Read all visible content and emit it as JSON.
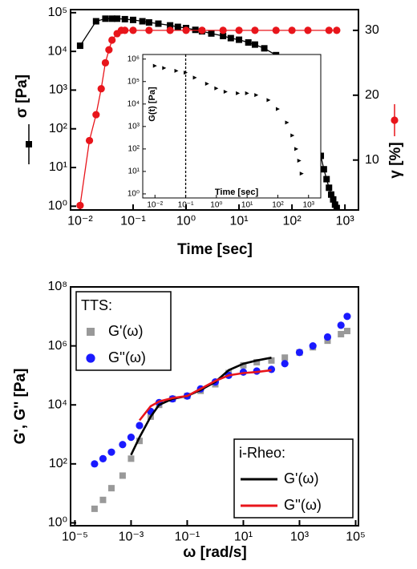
{
  "chart_data": [
    {
      "type": "line",
      "xlabel": "Time [sec]",
      "ylabel": "σ [Pa]",
      "y2label": "γ [%]",
      "xscale": "log",
      "yscale": "log",
      "xlim": [
        0.0066,
        1800
      ],
      "ylim": [
        0.8,
        120000
      ],
      "y2lim": [
        2.3,
        33.2
      ],
      "xticks": [
        {
          "value": 0.01,
          "label": "10⁻²"
        },
        {
          "value": 0.1,
          "label": "10⁻¹"
        },
        {
          "value": 1,
          "label": "10⁰"
        },
        {
          "value": 10,
          "label": "10¹"
        },
        {
          "value": 100,
          "label": "10²"
        },
        {
          "value": 1000,
          "label": "10³"
        }
      ],
      "yticks": [
        {
          "value": 1,
          "label": "10⁰"
        },
        {
          "value": 10,
          "label": "10¹"
        },
        {
          "value": 100,
          "label": "10²"
        },
        {
          "value": 1000,
          "label": "10³"
        },
        {
          "value": 10000,
          "label": "10⁴"
        },
        {
          "value": 100000,
          "label": "10⁵"
        }
      ],
      "y2ticks": [
        10,
        20,
        30
      ],
      "series": [
        {
          "color": "#000000",
          "marker": "square",
          "line": true,
          "x": [
            0.01,
            0.02,
            0.03,
            0.04,
            0.05,
            0.07,
            0.1,
            0.15,
            0.2,
            0.3,
            0.5,
            0.7,
            1,
            1.5,
            2,
            3,
            5,
            7,
            10,
            15,
            20,
            30,
            50,
            70,
            100,
            130,
            160,
            200,
            250,
            300,
            350,
            400,
            450,
            500,
            550,
            600,
            650,
            700
          ],
          "values": [
            14000,
            60000,
            70000,
            70000,
            70000,
            68000,
            65000,
            60000,
            56000,
            52000,
            47000,
            43000,
            40000,
            36000,
            33000,
            29000,
            25000,
            22000,
            20000,
            17000,
            15000,
            12000,
            8000,
            5000,
            2500,
            1300,
            700,
            300,
            120,
            50,
            20,
            9,
            5,
            3,
            2,
            1.5,
            1.1,
            0.9
          ]
        },
        {
          "color": "#e8151b",
          "marker": "circle",
          "line": true,
          "axis": "y2",
          "x": [
            0.01,
            0.015,
            0.02,
            0.025,
            0.03,
            0.035,
            0.04,
            0.05,
            0.06,
            0.07,
            0.1,
            0.2,
            0.5,
            1,
            2,
            5,
            10,
            20,
            50,
            100,
            200,
            500,
            700
          ],
          "values": [
            3,
            13,
            17,
            21,
            25,
            27,
            28.5,
            29.5,
            30,
            30,
            30,
            30,
            30,
            30,
            30,
            30,
            30,
            30,
            30,
            30,
            30,
            30,
            30
          ]
        }
      ]
    },
    {
      "type": "line",
      "xlabel": "Time [sec]",
      "ylabel": "G(t) [Pa]",
      "xscale": "log",
      "yscale": "log",
      "xlim": [
        0.004,
        2500
      ],
      "ylim": [
        0.66,
        1600000
      ],
      "xticks": [
        {
          "value": 0.01,
          "label": "10⁻²"
        },
        {
          "value": 0.1,
          "label": "10⁻¹"
        },
        {
          "value": 1,
          "label": "10⁰"
        },
        {
          "value": 10,
          "label": "10¹"
        },
        {
          "value": 100,
          "label": "10²"
        },
        {
          "value": 1000,
          "label": "10³"
        }
      ],
      "yticks": [
        {
          "value": 1,
          "label": "10⁰"
        },
        {
          "value": 10,
          "label": "10¹"
        },
        {
          "value": 100,
          "label": "10²"
        },
        {
          "value": 1000,
          "label": "10³"
        },
        {
          "value": 10000,
          "label": "10⁴"
        },
        {
          "value": 100000,
          "label": "10⁵"
        },
        {
          "value": 1000000,
          "label": "10⁶"
        }
      ],
      "vline": 0.1,
      "series": [
        {
          "color": "#000000",
          "marker": "triangle",
          "line": false,
          "x": [
            0.01,
            0.02,
            0.05,
            0.1,
            0.2,
            0.5,
            1,
            2,
            5,
            10,
            20,
            50,
            100,
            200,
            300,
            400,
            500,
            600
          ],
          "values": [
            500000,
            400000,
            300000,
            250000,
            150000,
            80000,
            50000,
            35000,
            30000,
            30000,
            25000,
            15000,
            6000,
            1500,
            400,
            100,
            30,
            8
          ]
        }
      ]
    },
    {
      "type": "scatter",
      "xlabel": "ω [rad/s]",
      "ylabel": "G', G'' [Pa]",
      "xscale": "log",
      "yscale": "log",
      "xlim": [
        7e-06,
        126000
      ],
      "ylim": [
        0.8,
        100000000
      ],
      "xticks": [
        {
          "value": 1e-05,
          "label": "10⁻⁵"
        },
        {
          "value": 0.001,
          "label": "10⁻³"
        },
        {
          "value": 0.1,
          "label": "10⁻¹"
        },
        {
          "value": 10,
          "label": "10¹"
        },
        {
          "value": 1000,
          "label": "10³"
        },
        {
          "value": 100000,
          "label": "10⁵"
        }
      ],
      "yticks": [
        {
          "value": 1,
          "label": "10⁰"
        },
        {
          "value": 100,
          "label": "10²"
        },
        {
          "value": 10000,
          "label": "10⁴"
        },
        {
          "value": 1000000,
          "label": "10⁶"
        },
        {
          "value": 100000000,
          "label": "10⁸"
        }
      ],
      "legend_groups": [
        {
          "title": "TTS:",
          "corner": "upper left"
        },
        {
          "title": "i-Rheo:",
          "corner": "lower right"
        }
      ],
      "series": [
        {
          "name": "G'(ω)",
          "legend": 0,
          "color": "#999999",
          "marker": "square",
          "line": false,
          "x": [
            5e-05,
            0.0001,
            0.0002,
            0.0005,
            0.001,
            0.002,
            0.005,
            0.01,
            0.03,
            0.1,
            0.3,
            1,
            3,
            10,
            30,
            100,
            300,
            1000,
            3000,
            10000,
            30000,
            50000
          ],
          "values": [
            3,
            6,
            15,
            40,
            150,
            600,
            4000,
            10000,
            16000,
            20000,
            30000,
            50000,
            120000,
            220000,
            280000,
            320000,
            400000,
            600000,
            900000,
            1500000,
            2500000,
            3200000
          ]
        },
        {
          "name": "G''(ω)",
          "legend": 0,
          "color": "#1a1aff",
          "marker": "circle",
          "line": false,
          "x": [
            5e-05,
            0.0001,
            0.0002,
            0.0005,
            0.001,
            0.002,
            0.005,
            0.01,
            0.03,
            0.1,
            0.3,
            1,
            3,
            10,
            30,
            100,
            300,
            1000,
            3000,
            10000,
            30000,
            50000
          ],
          "values": [
            100,
            150,
            250,
            450,
            800,
            2000,
            6000,
            12000,
            16000,
            20000,
            35000,
            60000,
            100000,
            130000,
            140000,
            160000,
            250000,
            600000,
            1000000,
            2000000,
            5000000,
            10000000
          ]
        },
        {
          "name": "G'(ω)",
          "legend": 1,
          "color": "#000000",
          "line": true,
          "x": [
            0.001,
            0.002,
            0.005,
            0.01,
            0.03,
            0.1,
            0.3,
            1,
            3,
            10,
            30,
            100
          ],
          "values": [
            200,
            800,
            4000,
            10000,
            16000,
            20000,
            32000,
            60000,
            150000,
            250000,
            320000,
            400000
          ]
        },
        {
          "name": "G''(ω)",
          "legend": 1,
          "color": "#e8151b",
          "line": true,
          "x": [
            0.002,
            0.005,
            0.01,
            0.03,
            0.1,
            0.3,
            1,
            3,
            10,
            30,
            100
          ],
          "values": [
            3000,
            9000,
            13000,
            17000,
            20000,
            35000,
            65000,
            100000,
            120000,
            130000,
            150000
          ]
        }
      ]
    }
  ]
}
